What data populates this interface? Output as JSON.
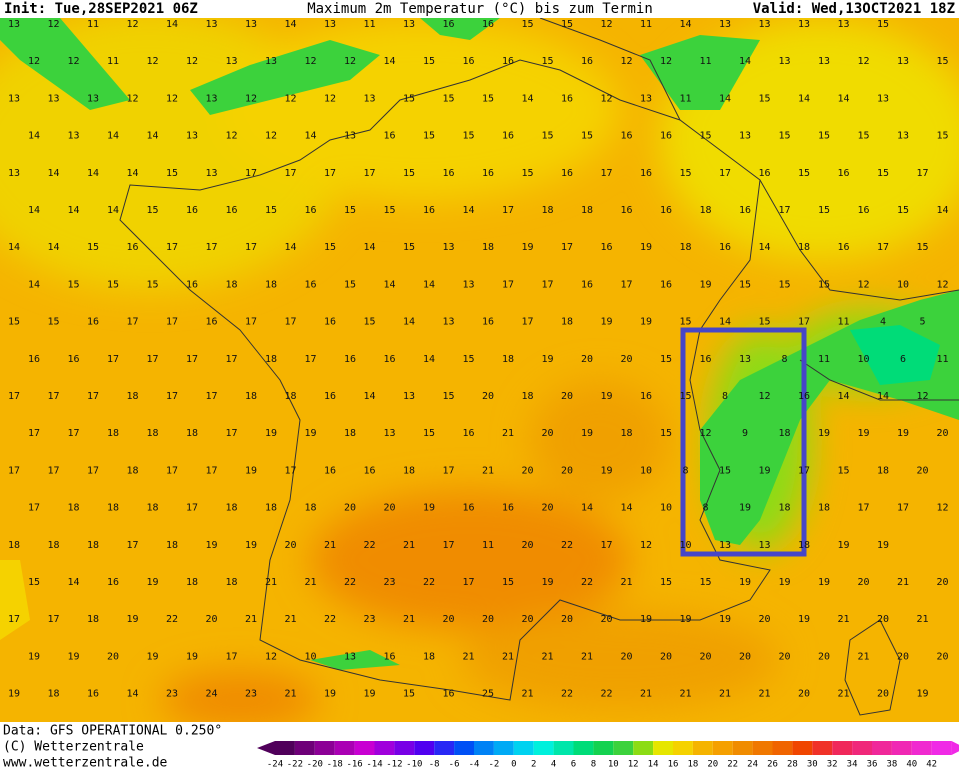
{
  "header": {
    "init": "Init: Tue,28SEP2021 06Z",
    "title": "Maximum 2m Temperatur (°C) bis zum Termin",
    "valid": "Valid: Wed,13OCT2021 18Z"
  },
  "map": {
    "rows": [
      [
        13,
        12,
        11,
        12,
        14,
        13,
        13,
        14,
        13,
        11,
        13,
        16,
        16,
        15,
        15,
        12,
        11,
        14,
        13,
        13,
        13,
        13,
        15,
        null
      ],
      [
        12,
        12,
        11,
        12,
        12,
        13,
        13,
        12,
        12,
        14,
        15,
        16,
        16,
        15,
        16,
        12,
        12,
        11,
        14,
        13,
        13,
        12,
        13,
        15
      ],
      [
        13,
        13,
        13,
        12,
        12,
        13,
        12,
        12,
        12,
        13,
        15,
        15,
        15,
        14,
        16,
        12,
        13,
        11,
        14,
        15,
        14,
        14,
        13,
        null
      ],
      [
        14,
        13,
        14,
        14,
        13,
        12,
        12,
        14,
        13,
        16,
        15,
        15,
        16,
        15,
        15,
        16,
        16,
        15,
        13,
        15,
        15,
        15,
        13,
        15
      ],
      [
        13,
        14,
        14,
        14,
        15,
        13,
        17,
        17,
        17,
        17,
        15,
        16,
        16,
        15,
        16,
        17,
        16,
        15,
        17,
        16,
        15,
        16,
        15,
        17
      ],
      [
        14,
        14,
        14,
        15,
        16,
        16,
        15,
        16,
        15,
        15,
        16,
        14,
        17,
        18,
        18,
        16,
        16,
        18,
        16,
        17,
        15,
        16,
        15,
        14
      ],
      [
        14,
        14,
        15,
        16,
        17,
        17,
        17,
        14,
        15,
        14,
        15,
        13,
        18,
        19,
        17,
        16,
        19,
        18,
        16,
        14,
        18,
        16,
        17,
        15
      ],
      [
        14,
        15,
        15,
        15,
        16,
        18,
        18,
        16,
        15,
        14,
        14,
        13,
        17,
        17,
        16,
        17,
        16,
        19,
        15,
        15,
        15,
        12,
        10,
        12
      ],
      [
        15,
        15,
        16,
        17,
        17,
        16,
        17,
        17,
        16,
        15,
        14,
        13,
        16,
        17,
        18,
        19,
        19,
        15,
        14,
        15,
        17,
        11,
        4,
        5
      ],
      [
        16,
        16,
        17,
        17,
        17,
        17,
        18,
        17,
        16,
        16,
        14,
        15,
        18,
        19,
        20,
        20,
        15,
        16,
        13,
        8,
        11,
        10,
        6,
        11
      ],
      [
        17,
        17,
        17,
        18,
        17,
        17,
        18,
        18,
        16,
        14,
        13,
        15,
        20,
        18,
        20,
        19,
        16,
        15,
        8,
        12,
        16,
        14,
        14,
        12
      ],
      [
        17,
        17,
        18,
        18,
        18,
        17,
        19,
        19,
        18,
        13,
        15,
        16,
        21,
        20,
        19,
        18,
        15,
        12,
        9,
        18,
        19,
        19,
        19,
        20
      ],
      [
        17,
        17,
        17,
        18,
        17,
        17,
        19,
        17,
        16,
        16,
        18,
        17,
        21,
        20,
        20,
        19,
        10,
        8,
        15,
        19,
        17,
        15,
        18,
        20
      ],
      [
        17,
        18,
        18,
        18,
        17,
        18,
        18,
        18,
        20,
        20,
        19,
        16,
        16,
        20,
        14,
        14,
        10,
        8,
        19,
        18,
        18,
        17,
        17,
        12
      ],
      [
        18,
        18,
        18,
        17,
        18,
        19,
        19,
        20,
        21,
        22,
        21,
        17,
        11,
        20,
        22,
        17,
        12,
        10,
        13,
        13,
        18,
        19,
        19,
        null
      ],
      [
        15,
        14,
        16,
        19,
        18,
        18,
        21,
        21,
        22,
        23,
        22,
        17,
        15,
        19,
        22,
        21,
        15,
        15,
        19,
        19,
        19,
        20,
        21,
        20
      ],
      [
        17,
        17,
        18,
        19,
        22,
        20,
        21,
        21,
        22,
        23,
        21,
        20,
        20,
        20,
        20,
        20,
        19,
        19,
        19,
        20,
        19,
        21,
        20,
        21
      ],
      [
        19,
        19,
        20,
        19,
        19,
        17,
        12,
        10,
        13,
        16,
        18,
        21,
        21,
        21,
        21,
        20,
        20,
        20,
        20,
        20,
        20,
        21,
        20,
        20
      ],
      [
        19,
        18,
        16,
        14,
        23,
        24,
        23,
        21,
        19,
        19,
        15,
        16,
        25,
        21,
        22,
        22,
        21,
        21,
        21,
        21,
        20,
        21,
        20,
        19
      ]
    ]
  },
  "footer": {
    "data": "Data: GFS OPERATIONAL 0.250°",
    "copyright": "(C) Wetterzentrale",
    "url": "www.wetterzentrale.de"
  },
  "colorbar": {
    "ticks": [
      -24,
      -22,
      -20,
      -18,
      -16,
      -14,
      -12,
      -10,
      -8,
      -6,
      -4,
      -2,
      0,
      2,
      4,
      6,
      8,
      10,
      12,
      14,
      16,
      18,
      20,
      22,
      24,
      26,
      28,
      30,
      32,
      34,
      36,
      38,
      40,
      42
    ],
    "colors": [
      "#50005a",
      "#6e0078",
      "#8c0096",
      "#aa00b4",
      "#c800d2",
      "#a000dc",
      "#7800e6",
      "#5000f0",
      "#2828f5",
      "#0050f5",
      "#0082f5",
      "#00aaf5",
      "#00d2f0",
      "#00f0dc",
      "#00e6aa",
      "#00dc78",
      "#14d250",
      "#3cd23c",
      "#8cdc14",
      "#e6e600",
      "#f5d200",
      "#f5b400",
      "#f5a000",
      "#f08c00",
      "#f07800",
      "#f06400",
      "#f04600",
      "#f03228",
      "#f0285a",
      "#f0287a",
      "#f0289a",
      "#f028b4",
      "#f02ad0",
      "#f02ae6"
    ]
  }
}
